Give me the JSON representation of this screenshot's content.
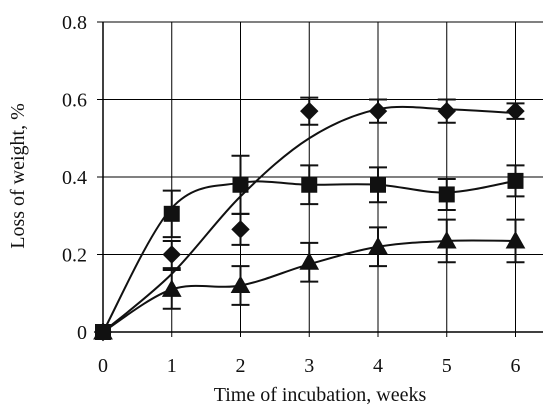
{
  "chart_data": {
    "type": "scatter",
    "title": "",
    "xlabel": "Time of incubation, weeks",
    "ylabel": "Loss of weight, %",
    "xlim": [
      0,
      6.4
    ],
    "ylim": [
      0,
      0.8
    ],
    "x_ticks": [
      {
        "value": 0,
        "label": "0"
      },
      {
        "value": 1,
        "label": "1"
      },
      {
        "value": 2,
        "label": "2"
      },
      {
        "value": 3,
        "label": "3"
      },
      {
        "value": 4,
        "label": "4"
      },
      {
        "value": 5,
        "label": "5"
      },
      {
        "value": 6,
        "label": "6"
      }
    ],
    "y_ticks": [
      {
        "value": 0,
        "label": "0"
      },
      {
        "value": 0.2,
        "label": "0.2"
      },
      {
        "value": 0.4,
        "label": "0.4"
      },
      {
        "value": 0.6,
        "label": "0.6"
      },
      {
        "value": 0.8,
        "label": "0.8"
      }
    ],
    "grid": true,
    "legend": "none",
    "marker_color": "#111111",
    "series": [
      {
        "marker": "diamond",
        "x": [
          0,
          1,
          2,
          3,
          4,
          5,
          6
        ],
        "y": [
          0,
          0.2,
          0.265,
          0.57,
          0.57,
          0.57,
          0.57
        ],
        "error": [
          0,
          0.035,
          0.04,
          0.035,
          0.03,
          0.03,
          0.02
        ],
        "fit": [
          [
            0,
            0
          ],
          [
            1,
            0.15
          ],
          [
            2,
            0.35
          ],
          [
            3,
            0.5
          ],
          [
            4,
            0.575
          ],
          [
            5,
            0.575
          ],
          [
            6,
            0.565
          ]
        ]
      },
      {
        "marker": "square",
        "x": [
          0,
          1,
          2,
          3,
          4,
          5,
          6
        ],
        "y": [
          0,
          0.305,
          0.38,
          0.38,
          0.38,
          0.355,
          0.39
        ],
        "error": [
          0,
          0.06,
          0.075,
          0.05,
          0.045,
          0.04,
          0.04
        ],
        "fit": [
          [
            0,
            0
          ],
          [
            1,
            0.32
          ],
          [
            2,
            0.385
          ],
          [
            3,
            0.38
          ],
          [
            4,
            0.38
          ],
          [
            5,
            0.36
          ],
          [
            6,
            0.39
          ]
        ]
      },
      {
        "marker": "triangle",
        "x": [
          0,
          1,
          2,
          3,
          4,
          5,
          6
        ],
        "y": [
          0,
          0.11,
          0.12,
          0.18,
          0.22,
          0.235,
          0.235
        ],
        "error": [
          0,
          0.05,
          0.05,
          0.05,
          0.05,
          0.055,
          0.055
        ],
        "fit": [
          [
            0,
            0
          ],
          [
            1,
            0.11
          ],
          [
            2,
            0.12
          ],
          [
            3,
            0.175
          ],
          [
            4,
            0.22
          ],
          [
            5,
            0.235
          ],
          [
            6,
            0.235
          ]
        ]
      }
    ]
  }
}
